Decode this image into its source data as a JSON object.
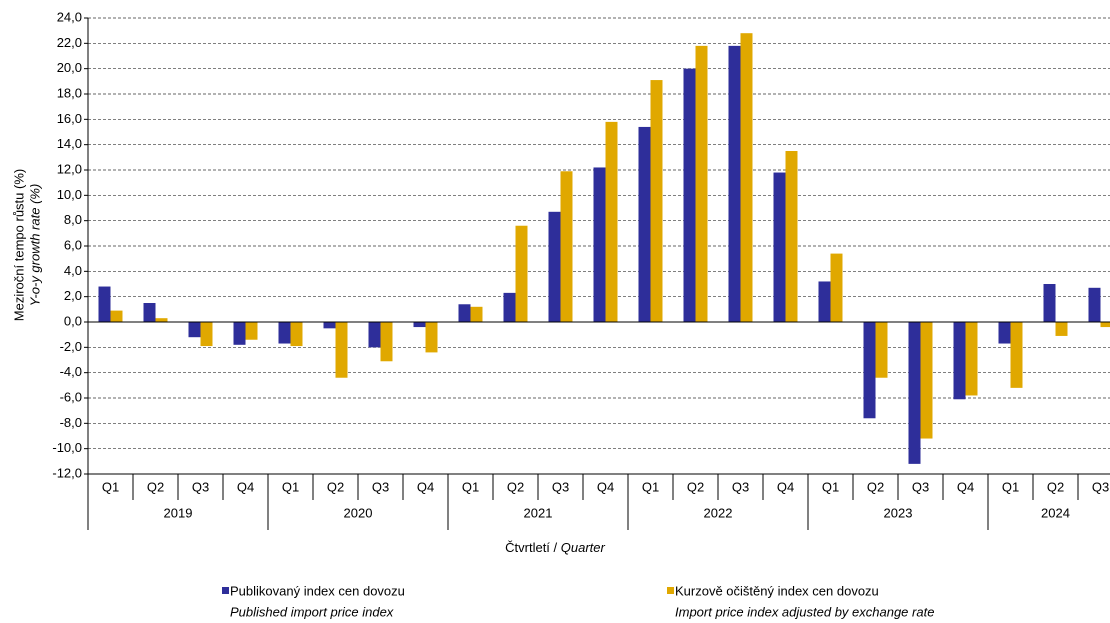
{
  "chart_data": {
    "type": "bar",
    "ylabel": [
      "Meziroční tempo růstu (%)",
      "Y-o-y growth rate (%)"
    ],
    "xlabel": [
      "Čtvrtletí /",
      "Quarter"
    ],
    "categories": [
      "Q1",
      "Q2",
      "Q3",
      "Q4",
      "Q1",
      "Q2",
      "Q3",
      "Q4",
      "Q1",
      "Q2",
      "Q3",
      "Q4",
      "Q1",
      "Q2",
      "Q3",
      "Q4",
      "Q1",
      "Q2",
      "Q3",
      "Q4",
      "Q1",
      "Q2",
      "Q3"
    ],
    "category_years": [
      "2019",
      "2019",
      "2019",
      "2019",
      "2020",
      "2020",
      "2020",
      "2020",
      "2021",
      "2021",
      "2021",
      "2021",
      "2022",
      "2022",
      "2022",
      "2022",
      "2023",
      "2023",
      "2023",
      "2023",
      "2024",
      "2024",
      "2024"
    ],
    "series": [
      {
        "name": "Publikovaný index cen dovozu",
        "name_en": "Published import price index",
        "color": "#2e2e9a",
        "values": [
          2.8,
          1.5,
          -1.2,
          -1.8,
          -1.7,
          -0.5,
          -2.0,
          -0.4,
          1.4,
          2.3,
          8.7,
          12.2,
          15.4,
          20.0,
          21.8,
          11.8,
          3.2,
          -7.6,
          -11.2,
          -6.1,
          -1.7,
          3.0,
          2.7
        ]
      },
      {
        "name": "Kurzově očištěný index cen dovozu",
        "name_en": "Import price index adjusted by exchange rate",
        "color": "#e0a800",
        "values": [
          0.9,
          0.3,
          -1.9,
          -1.4,
          -1.9,
          -4.4,
          -3.1,
          -2.4,
          1.2,
          7.6,
          11.9,
          15.8,
          19.1,
          21.8,
          22.8,
          13.5,
          5.4,
          -4.4,
          -9.2,
          -5.8,
          -5.2,
          -1.1,
          -0.4
        ]
      }
    ],
    "ylim": [
      -12,
      24
    ],
    "yticks": [
      {
        "value": -12,
        "label": "-12,0"
      },
      {
        "value": -10,
        "label": "-10,0"
      },
      {
        "value": -8,
        "label": "-8,0"
      },
      {
        "value": -6,
        "label": "-6,0"
      },
      {
        "value": -4,
        "label": "-4,0"
      },
      {
        "value": -2,
        "label": "-2,0"
      },
      {
        "value": 0,
        "label": "0,0"
      },
      {
        "value": 2,
        "label": "2,0"
      },
      {
        "value": 4,
        "label": "4,0"
      },
      {
        "value": 6,
        "label": "6,0"
      },
      {
        "value": 8,
        "label": "8,0"
      },
      {
        "value": 10,
        "label": "10,0"
      },
      {
        "value": 12,
        "label": "12,0"
      },
      {
        "value": 14,
        "label": "14,0"
      },
      {
        "value": 16,
        "label": "16,0"
      },
      {
        "value": 18,
        "label": "18,0"
      },
      {
        "value": 20,
        "label": "20,0"
      },
      {
        "value": 22,
        "label": "22,0"
      },
      {
        "value": 24,
        "label": "24,0"
      }
    ],
    "grid": true,
    "legend": "bottom"
  }
}
